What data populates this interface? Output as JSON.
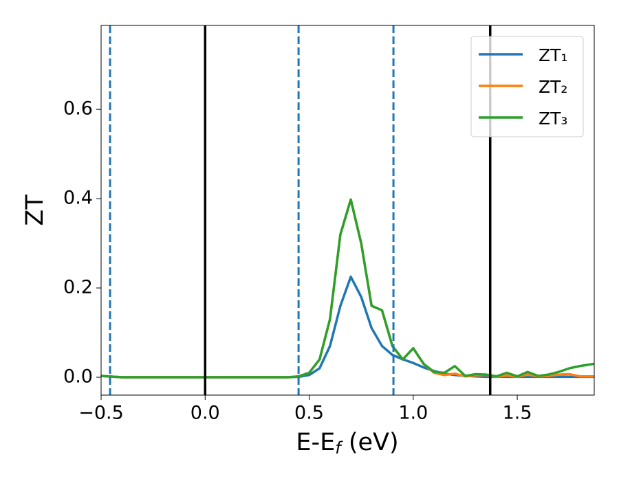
{
  "chart_data": {
    "type": "line",
    "ylabel": "ZT",
    "xlabel": [
      "E-E",
      "f",
      " (eV)"
    ],
    "x": [
      -0.5,
      -0.4,
      -0.3,
      -0.2,
      -0.1,
      0,
      0.1,
      0.2,
      0.3,
      0.4,
      0.45,
      0.5,
      0.55,
      0.6,
      0.65,
      0.7,
      0.75,
      0.8,
      0.85,
      0.9,
      0.95,
      1.0,
      1.05,
      1.1,
      1.15,
      1.2,
      1.25,
      1.3,
      1.35,
      1.4,
      1.45,
      1.5,
      1.55,
      1.6,
      1.65,
      1.7,
      1.75,
      1.8,
      1.87
    ],
    "series": [
      {
        "name": "ZT₁",
        "color": "#1f77b4",
        "values": [
          0.003,
          0,
          0,
          0,
          0,
          0,
          0,
          0,
          0,
          0,
          0.001,
          0.005,
          0.02,
          0.07,
          0.16,
          0.225,
          0.18,
          0.11,
          0.07,
          0.05,
          0.04,
          0.032,
          0.022,
          0.014,
          0.008,
          0.005,
          0.003,
          0.002,
          0.001,
          0.001,
          0.001,
          0.001,
          0.001,
          0.001,
          0.001,
          0.001,
          0.001,
          0.001,
          0.001
        ]
      },
      {
        "name": "ZT₂",
        "color": "#ff7f0e",
        "values": [
          0.003,
          0,
          0,
          0,
          0,
          0,
          0,
          0,
          0,
          0,
          0.002,
          0.01,
          0.04,
          0.13,
          0.32,
          0.398,
          0.3,
          0.16,
          0.15,
          0.07,
          0.04,
          0.065,
          0.03,
          0.01,
          0.005,
          0.008,
          0.002,
          0.004,
          0.005,
          0.001,
          0.004,
          0.001,
          0.006,
          0.002,
          0.003,
          0.006,
          0.007,
          0.002,
          0.002
        ]
      },
      {
        "name": "ZT₃",
        "color": "#2ca02c",
        "values": [
          0.003,
          0,
          0,
          0,
          0,
          0,
          0,
          0,
          0,
          0,
          0.002,
          0.01,
          0.04,
          0.13,
          0.32,
          0.398,
          0.3,
          0.16,
          0.15,
          0.07,
          0.04,
          0.065,
          0.03,
          0.012,
          0.01,
          0.025,
          0.003,
          0.007,
          0.006,
          0.002,
          0.01,
          0.002,
          0.012,
          0.003,
          0.006,
          0.012,
          0.02,
          0.025,
          0.03
        ]
      }
    ],
    "vlines": [
      {
        "x": 0,
        "color": "#000000",
        "dashed": false
      },
      {
        "x": 1.37,
        "color": "#000000",
        "dashed": false
      },
      {
        "x": -0.457,
        "color": "#1f77b4",
        "dashed": true
      },
      {
        "x": 0.449,
        "color": "#1f77b4",
        "dashed": true
      },
      {
        "x": 0.905,
        "color": "#1f77b4",
        "dashed": true
      }
    ],
    "xlim": [
      -0.5,
      1.87
    ],
    "ylim": [
      -0.04,
      0.788
    ],
    "xticks": [
      {
        "value": -0.5,
        "label": "−0.5"
      },
      {
        "value": 0,
        "label": "0.0"
      },
      {
        "value": 0.5,
        "label": "0.5"
      },
      {
        "value": 1,
        "label": "1.0"
      },
      {
        "value": 1.5,
        "label": "1.5"
      }
    ],
    "yticks": [
      {
        "value": 0,
        "label": "0.0"
      },
      {
        "value": 0.2,
        "label": "0.2"
      },
      {
        "value": 0.4,
        "label": "0.4"
      },
      {
        "value": 0.6,
        "label": "0.6"
      }
    ],
    "legend": "upper right",
    "grid": false
  }
}
